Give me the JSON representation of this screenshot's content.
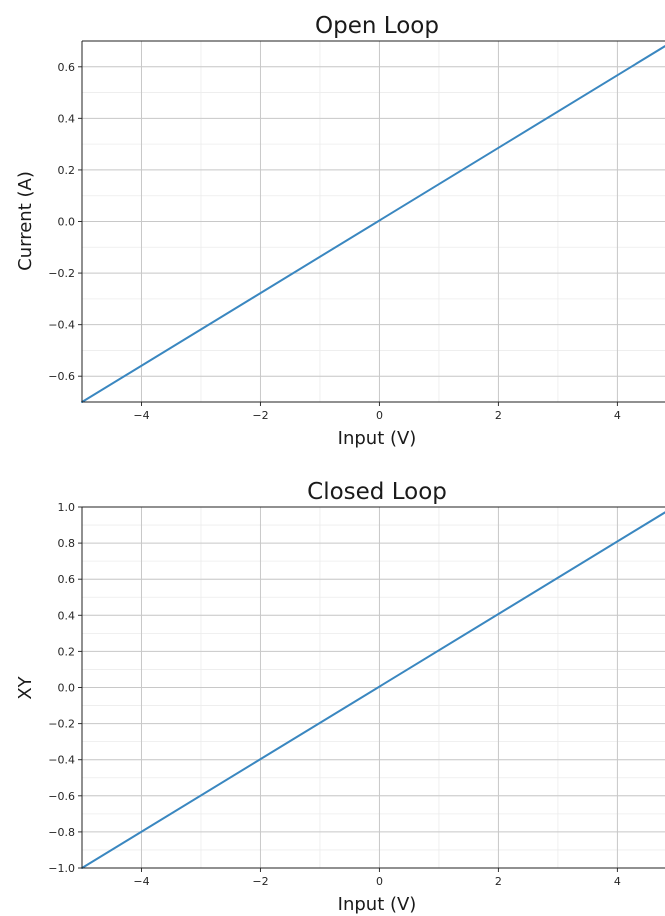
{
  "chart_data": [
    {
      "type": "line",
      "title": "Open Loop",
      "xlabel": "Input (V)",
      "ylabel": "Current (A)",
      "xlim": [
        -5,
        4.8
      ],
      "ylim": [
        -0.7,
        0.7
      ],
      "grid": true,
      "line_color": "#3a87c0",
      "xticks": [
        -4,
        -2,
        0,
        2,
        4
      ],
      "yticks": [
        -0.6,
        -0.4,
        -0.2,
        0.0,
        0.2,
        0.4,
        0.6
      ],
      "xtick_labels": [
        "−4",
        "−2",
        "0",
        "2",
        "4"
      ],
      "ytick_labels": [
        "−0.6",
        "−0.4",
        "−0.2",
        "0.0",
        "0.2",
        "0.4",
        "0.6"
      ],
      "series": [
        {
          "x": [
            -5,
            4.8
          ],
          "y": [
            -0.7,
            0.68
          ]
        }
      ]
    },
    {
      "type": "line",
      "title": "Closed Loop",
      "xlabel": "Input (V)",
      "ylabel": "XY",
      "xlim": [
        -5,
        4.8
      ],
      "ylim": [
        -1.0,
        1.0
      ],
      "grid": true,
      "line_color": "#3a87c0",
      "xticks": [
        -4,
        -2,
        0,
        2,
        4
      ],
      "yticks": [
        -1.0,
        -0.8,
        -0.6,
        -0.4,
        -0.2,
        0.0,
        0.2,
        0.4,
        0.6,
        0.8,
        1.0
      ],
      "xtick_labels": [
        "−4",
        "−2",
        "0",
        "2",
        "4"
      ],
      "ytick_labels": [
        "−1.0",
        "−0.8",
        "−0.6",
        "−0.4",
        "−0.2",
        "0.0",
        "0.2",
        "0.4",
        "0.6",
        "0.8",
        "1.0"
      ],
      "series": [
        {
          "x": [
            -5,
            4.8
          ],
          "y": [
            -1.0,
            0.97
          ]
        }
      ]
    }
  ]
}
